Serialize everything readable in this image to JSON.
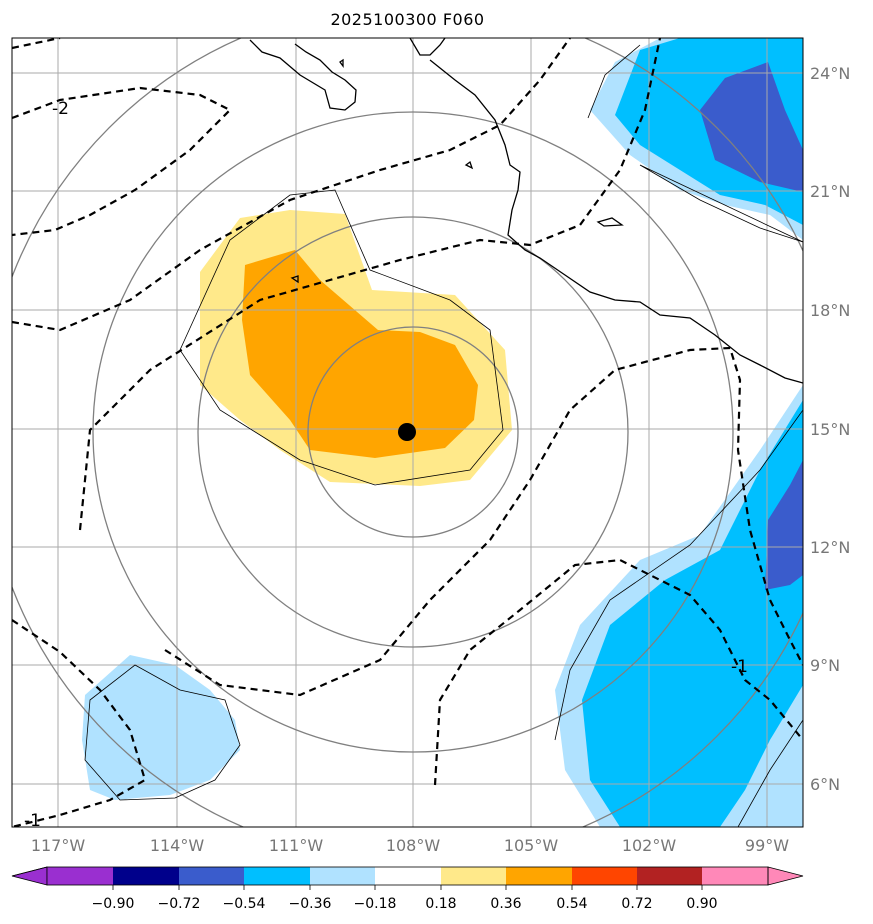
{
  "title": "2025100300 F060",
  "lon_labels": [
    "117°W",
    "114°W",
    "111°W",
    "108°W",
    "105°W",
    "102°W",
    "99°W"
  ],
  "lat_labels": [
    "24°N",
    "21°N",
    "18°N",
    "15°N",
    "12°N",
    "9°N",
    "6°N"
  ],
  "contour_labels": [
    "-2",
    "-1",
    "-1"
  ],
  "colorbar": {
    "ticks": [
      "−0.90",
      "−0.72",
      "−0.54",
      "−0.36",
      "−0.18",
      "0.18",
      "0.36",
      "0.54",
      "0.72",
      "0.90"
    ],
    "colors": [
      "#9a2fd0",
      "#00008b",
      "#3a5ccc",
      "#00bfff",
      "#b0e2ff",
      "#ffffff",
      "#ffe98a",
      "#ffa500",
      "#ff4500",
      "#b22222",
      "#ff88b8"
    ]
  },
  "storm_center": {
    "lon": -108.1,
    "lat": 14.9
  }
}
